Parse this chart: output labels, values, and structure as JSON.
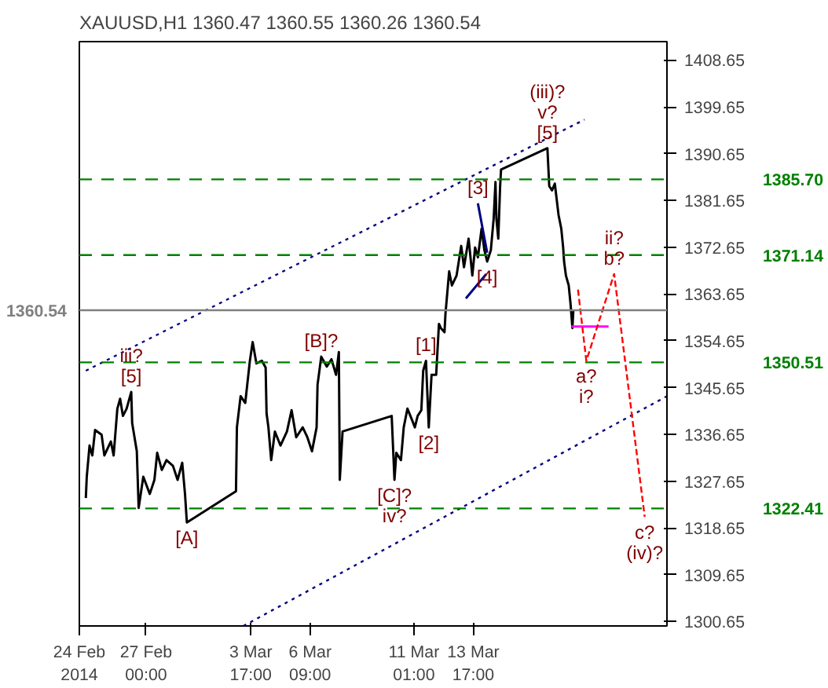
{
  "chart_data": {
    "type": "line",
    "title": "XAUUSD,H1  1360.47 1360.55 1360.26 1360.54",
    "xlim": [
      "2014-02-24T00:00",
      "2014-03-22T10:00"
    ],
    "ylim": [
      1299.8,
      1412.2
    ],
    "xticks": [
      {
        "value": "2014-02-24T00:00",
        "label": "24 Feb 2014"
      },
      {
        "value": "2014-02-27T00:00",
        "label": "27 Feb 00:00"
      },
      {
        "value": "2014-03-03T17:00",
        "label": "3 Mar 17:00"
      },
      {
        "value": "2014-03-06T09:00",
        "label": "6 Mar 09:00"
      },
      {
        "value": "2014-03-11T01:00",
        "label": "11 Mar 01:00"
      },
      {
        "value": "2014-03-13T17:00",
        "label": "13 Mar 17:00"
      }
    ],
    "yticks": [
      1300.65,
      1309.65,
      1318.65,
      1327.65,
      1336.65,
      1345.65,
      1354.65,
      1363.65,
      1372.65,
      1381.65,
      1390.65,
      1399.65,
      1408.65
    ],
    "grid": false,
    "series": [
      {
        "color": "#000000",
        "line_style": "solid",
        "x": [
          "2014-02-24T07:00",
          "2014-02-24T08:00",
          "2014-02-24T11:00",
          "2014-02-24T14:00",
          "2014-02-24T17:00",
          "2014-02-25T00:00",
          "2014-02-25T03:00",
          "2014-02-25T10:00",
          "2014-02-25T13:00",
          "2014-02-25T17:00",
          "2014-02-25T20:00",
          "2014-02-25T23:00",
          "2014-02-26T03:00",
          "2014-02-26T08:00",
          "2014-02-26T09:00",
          "2014-02-26T14:00",
          "2014-02-26T16:00",
          "2014-02-26T21:00",
          "2014-02-27T04:00",
          "2014-02-27T09:00",
          "2014-02-27T12:00",
          "2014-02-27T17:00",
          "2014-02-27T22:00",
          "2014-02-28T05:00",
          "2014-02-28T10:00",
          "2014-02-28T15:00",
          "2014-02-28T18:00",
          "2014-02-28T20:00",
          "2014-03-03T01:00",
          "2014-03-03T02:00",
          "2014-03-03T06:00",
          "2014-03-03T11:00",
          "2014-03-03T16:00",
          "2014-03-03T19:00",
          "2014-03-03T23:00",
          "2014-03-04T05:00",
          "2014-03-04T09:00",
          "2014-03-04T10:00",
          "2014-03-04T12:00",
          "2014-03-04T15:00",
          "2014-03-04T19:00",
          "2014-03-05T01:00",
          "2014-03-05T08:00",
          "2014-03-05T13:00",
          "2014-03-05T18:00",
          "2014-03-06T01:00",
          "2014-03-06T06:00",
          "2014-03-06T11:00",
          "2014-03-06T16:00",
          "2014-03-06T17:00",
          "2014-03-06T21:00",
          "2014-03-07T03:00",
          "2014-03-07T08:00",
          "2014-03-07T13:00",
          "2014-03-07T16:00",
          "2014-03-07T17:00",
          "2014-03-07T20:00",
          "2014-03-10T01:00",
          "2014-03-10T04:00",
          "2014-03-10T06:00",
          "2014-03-10T11:00",
          "2014-03-10T14:00",
          "2014-03-10T18:00",
          "2014-03-10T23:00",
          "2014-03-11T02:00",
          "2014-03-11T05:00",
          "2014-03-11T09:00",
          "2014-03-11T11:00",
          "2014-03-11T14:00",
          "2014-03-11T17:00",
          "2014-03-11T20:00",
          "2014-03-12T01:00",
          "2014-03-12T04:00",
          "2014-03-12T06:00",
          "2014-03-12T10:00",
          "2014-03-12T11:00",
          "2014-03-12T15:00",
          "2014-03-12T18:00",
          "2014-03-12T23:00",
          "2014-03-13T04:00",
          "2014-03-13T07:00",
          "2014-03-13T12:00",
          "2014-03-13T16:00",
          "2014-03-13T19:00",
          "2014-03-13T22:00",
          "2014-03-14T02:00",
          "2014-03-14T05:00",
          "2014-03-14T08:00",
          "2014-03-14T12:00",
          "2014-03-14T15:00",
          "2014-03-14T17:00",
          "2014-03-14T18:00",
          "2014-03-14T20:00",
          "2014-03-14T22:00",
          "2014-03-14T23:00",
          "2014-03-17T01:00",
          "2014-03-17T03:00",
          "2014-03-17T06:00",
          "2014-03-17T09:00",
          "2014-03-17T13:00",
          "2014-03-17T16:00",
          "2014-03-17T18:00",
          "2014-03-17T19:00",
          "2014-03-17T21:00",
          "2014-03-18T00:00",
          "2014-03-18T02:00",
          "2014-03-18T04:00",
          "2014-03-18T05:00"
        ],
        "values": [
          1324.4,
          1328.5,
          1334.5,
          1332.6,
          1337.5,
          1336.6,
          1332.6,
          1335.3,
          1332.6,
          1341.6,
          1343.5,
          1340.2,
          1341.6,
          1344.8,
          1338.8,
          1333.4,
          1322.5,
          1328.5,
          1325.2,
          1327.9,
          1333.1,
          1329.8,
          1331.7,
          1330.6,
          1327.9,
          1331.2,
          1325.2,
          1319.7,
          1325.7,
          1338.0,
          1344.0,
          1342.7,
          1350.8,
          1354.4,
          1350.3,
          1350.8,
          1349.5,
          1340.7,
          1338.0,
          1331.7,
          1337.2,
          1334.5,
          1337.2,
          1341.3,
          1336.1,
          1338.0,
          1336.1,
          1333.4,
          1338.0,
          1346.2,
          1351.6,
          1349.7,
          1351.1,
          1348.1,
          1352.5,
          1327.9,
          1337.2,
          1340.2,
          1327.9,
          1333.1,
          1331.7,
          1338.0,
          1341.6,
          1339.4,
          1338.0,
          1340.2,
          1341.3,
          1348.9,
          1350.8,
          1338.0,
          1348.1,
          1348.1,
          1357.9,
          1357.1,
          1356.3,
          1359.8,
          1368.0,
          1365.3,
          1367.2,
          1372.9,
          1368.8,
          1374.3,
          1367.2,
          1372.6,
          1370.7,
          1376.2,
          1372.1,
          1369.9,
          1372.1,
          1378.1,
          1385.2,
          1378.1,
          1374.3,
          1384.4,
          1387.6,
          1391.7,
          1384.4,
          1383.6,
          1384.9,
          1378.9,
          1376.2,
          1372.6,
          1369.9,
          1367.2,
          1365.3,
          1361.7,
          1357.1,
          1360.5
        ]
      },
      {
        "color": "#000080",
        "line_style": "dotted",
        "x": [
          "2014-02-24T07:00",
          "2014-03-18T17:00"
        ],
        "values": [
          1348.9,
          1397.2
        ]
      },
      {
        "color": "#000080",
        "line_style": "dotted",
        "x": [
          "2014-03-03T09:00",
          "2014-03-22T10:00"
        ],
        "values": [
          1299.8,
          1344.0
        ]
      },
      {
        "color": "#000080",
        "line_style": "solid",
        "x": [
          "2014-03-13T22:00",
          "2014-03-14T08:00"
        ],
        "values": [
          1381.1,
          1371.6
        ]
      },
      {
        "color": "#000080",
        "line_style": "solid",
        "x": [
          "2014-03-13T09:00",
          "2014-03-14T07:00"
        ],
        "values": [
          1362.8,
          1367.5
        ]
      },
      {
        "color": "#ff00ff",
        "line_style": "solid",
        "x": [
          "2014-03-18T03:00",
          "2014-03-19T19:00"
        ],
        "values": [
          1357.4,
          1357.4
        ]
      },
      {
        "color": "#ff0000",
        "line_style": "dashed",
        "x": [
          "2014-03-18T10:00",
          "2014-03-18T19:00",
          "2014-03-20T01:00",
          "2014-03-21T10:00"
        ],
        "values": [
          1364.5,
          1350.8,
          1367.5,
          1320.8
        ]
      }
    ],
    "ref_lines": [
      {
        "axis": "y",
        "value": 1385.7,
        "label": "1385.70",
        "color": "#008000",
        "line_style": "dashed"
      },
      {
        "axis": "y",
        "value": 1371.14,
        "label": "1371.14",
        "color": "#008000",
        "line_style": "dashed"
      },
      {
        "axis": "y",
        "value": 1350.51,
        "label": "1350.51",
        "color": "#008000",
        "line_style": "dashed"
      },
      {
        "axis": "y",
        "value": 1322.41,
        "label": "1322.41",
        "color": "#008000",
        "line_style": "dashed"
      },
      {
        "axis": "y",
        "value": 1360.54,
        "label": "1360.54",
        "color": "#808080",
        "line_style": "solid"
      }
    ],
    "annotations": [
      {
        "text": "[5]",
        "x": "2014-03-17T01:00",
        "y": 1391.7
      },
      {
        "text": "v?",
        "x": "2014-03-17T01:00",
        "y": 1391.7
      },
      {
        "text": "(iii)?",
        "x": "2014-03-17T01:00",
        "y": 1391.7
      },
      {
        "text": "[3]",
        "x": "2014-03-13T22:00",
        "y": 1381.1
      },
      {
        "text": "[4]",
        "x": "2014-03-14T08:00",
        "y": 1369.9
      },
      {
        "text": "b?",
        "x": "2014-03-20T01:00",
        "y": 1367.5
      },
      {
        "text": "ii?",
        "x": "2014-03-20T01:00",
        "y": 1367.5
      },
      {
        "text": "[5]",
        "x": "2014-02-26T08:00",
        "y": 1344.8
      },
      {
        "text": "iii?",
        "x": "2014-02-26T08:00",
        "y": 1344.8
      },
      {
        "text": "[B]?",
        "x": "2014-03-06T21:00",
        "y": 1351.6
      },
      {
        "text": "[1]",
        "x": "2014-03-11T14:00",
        "y": 1350.8
      },
      {
        "text": "[2]",
        "x": "2014-03-11T17:00",
        "y": 1338.0
      },
      {
        "text": "[C]?",
        "x": "2014-03-10T04:00",
        "y": 1327.9
      },
      {
        "text": "iv?",
        "x": "2014-03-10T04:00",
        "y": 1327.9
      },
      {
        "text": "[A]",
        "x": "2014-02-28T20:00",
        "y": 1319.7
      },
      {
        "text": "a?",
        "x": "2014-03-18T19:00",
        "y": 1350.8
      },
      {
        "text": "i?",
        "x": "2014-03-18T19:00",
        "y": 1350.8
      },
      {
        "text": "c?",
        "x": "2014-03-21T10:00",
        "y": 1320.8
      },
      {
        "text": "(iv)?",
        "x": "2014-03-21T10:00",
        "y": 1320.8
      }
    ]
  }
}
